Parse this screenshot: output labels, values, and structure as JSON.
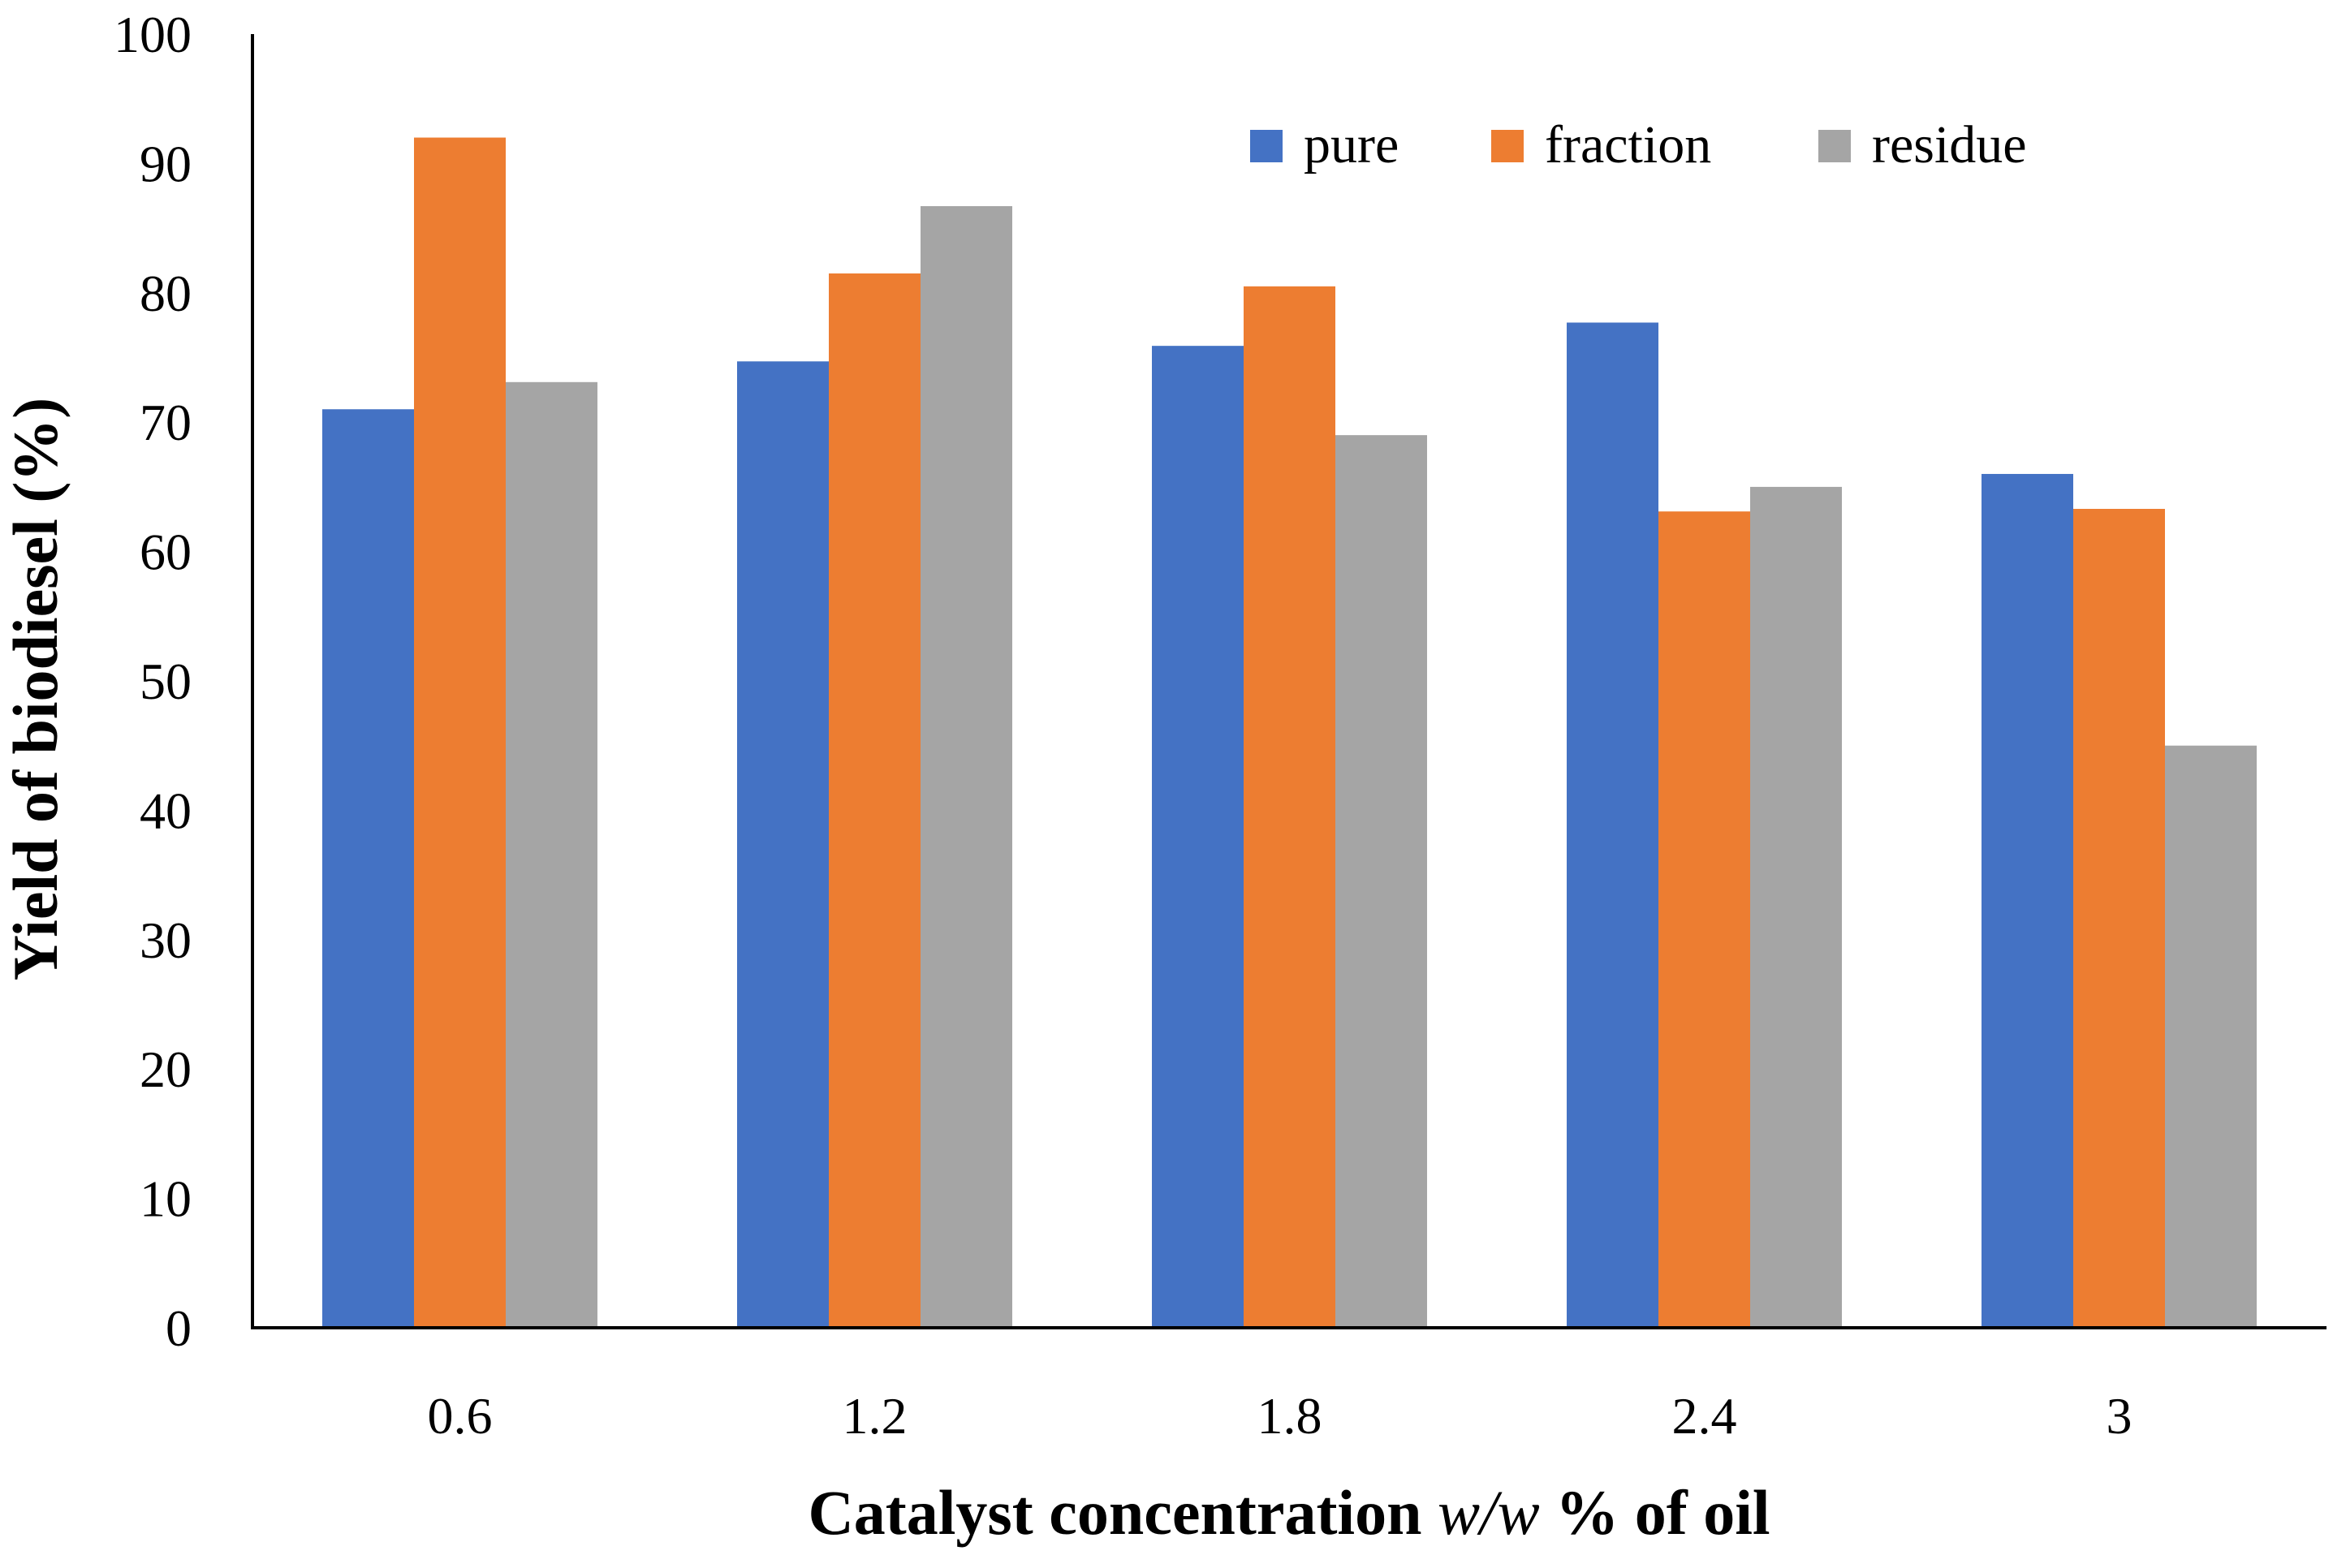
{
  "chart_data": {
    "type": "bar",
    "title": "",
    "categories": [
      "0.6",
      "1.2",
      "1.8",
      "2.4",
      "3"
    ],
    "series": [
      {
        "name": "pure",
        "color": "#4472C4",
        "values": [
          71,
          74.7,
          75.9,
          77.7,
          66
        ]
      },
      {
        "name": "fraction",
        "color": "#ED7D31",
        "values": [
          92,
          81.5,
          80.5,
          63.1,
          63.3
        ]
      },
      {
        "name": "residue",
        "color": "#A5A5A5",
        "values": [
          73.1,
          86.7,
          69,
          65,
          45
        ]
      }
    ],
    "ylim": [
      0,
      100
    ],
    "yticks": [
      "0",
      "10",
      "20",
      "30",
      "40",
      "50",
      "60",
      "70",
      "80",
      "90",
      "100"
    ],
    "ylabel": "Yield of biodiesel (%)",
    "xlabel": {
      "prefix": "Catalyst concentration ",
      "italic": "w/w",
      "suffix": " % of oil"
    },
    "legend_position": "top-right",
    "grid": false
  }
}
